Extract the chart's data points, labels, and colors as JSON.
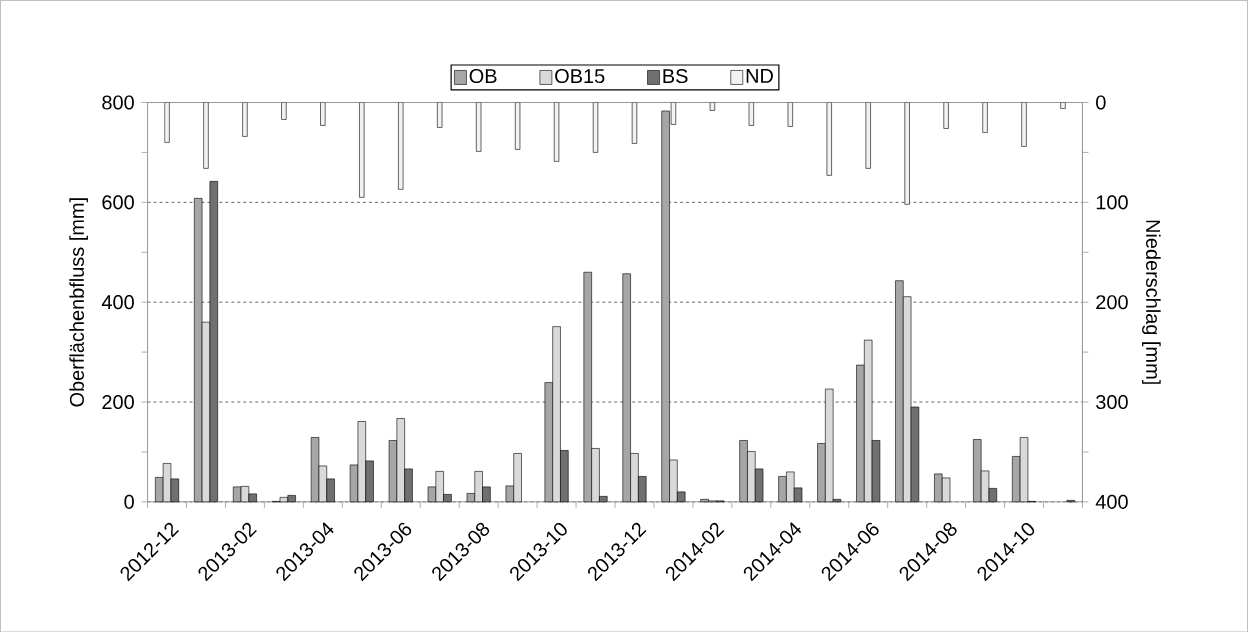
{
  "chart_data": {
    "type": "bar",
    "categories": [
      "2012-12",
      null,
      "2013-02",
      null,
      "2013-04",
      null,
      "2013-06",
      null,
      "2013-08",
      null,
      "2013-10",
      null,
      "2013-12",
      null,
      "2014-02",
      null,
      "2014-04",
      null,
      "2014-06",
      null,
      "2014-08",
      null,
      "2014-10",
      null
    ],
    "series": [
      {
        "name": "OB",
        "color": "#a6a6a6",
        "values": [
          49,
          608,
          30,
          1,
          129,
          74,
          123,
          30,
          17,
          32,
          239,
          460,
          457,
          783,
          5,
          123,
          51,
          117,
          274,
          443,
          56,
          125,
          91,
          null
        ]
      },
      {
        "name": "OB15",
        "color": "#d9d9d9",
        "values": [
          77,
          360,
          31,
          9,
          72,
          161,
          167,
          61,
          61,
          97,
          351,
          107,
          97,
          84,
          2,
          101,
          60,
          226,
          324,
          411,
          48,
          62,
          129,
          null
        ]
      },
      {
        "name": "BS",
        "color": "#707070",
        "values": [
          46,
          642,
          16,
          13,
          46,
          82,
          66,
          15,
          30,
          null,
          103,
          11,
          51,
          20,
          2,
          66,
          28,
          5,
          123,
          190,
          null,
          27,
          1,
          3
        ]
      },
      {
        "name": "ND",
        "color": "#f2f2f2",
        "axis": "y2",
        "values": [
          40,
          66,
          34,
          17,
          23,
          95,
          87,
          25,
          49,
          47,
          59,
          50,
          41,
          22,
          8,
          23,
          24,
          73,
          66,
          102,
          26,
          30,
          44,
          6
        ]
      }
    ],
    "ylabel": "Oberflächenbfluss [mm]",
    "y2label": "Niederschlag [mm]",
    "ylim": [
      0,
      800
    ],
    "yticks": [
      0,
      200,
      400,
      600,
      800
    ],
    "y2lim": [
      400,
      0
    ],
    "y2ticks": [
      0,
      100,
      200,
      300,
      400
    ],
    "grid": "y",
    "legend": "top"
  }
}
